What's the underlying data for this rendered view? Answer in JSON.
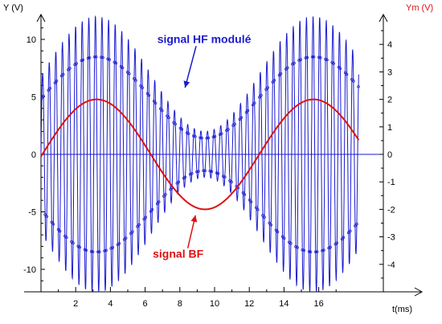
{
  "chart_data": {
    "type": "line",
    "axes": {
      "left": {
        "label": "Y (V)",
        "range": [
          -12,
          12
        ],
        "ticks": [
          10,
          5,
          0,
          -5,
          -10
        ],
        "tick_labels": [
          "10",
          "5",
          "0",
          "-5",
          "-10"
        ]
      },
      "right": {
        "label": "Ym (V)",
        "range": [
          -4.8,
          4.8
        ],
        "ticks": [
          4,
          3,
          2,
          1,
          0,
          -1,
          -2,
          -3,
          -4
        ],
        "tick_labels": [
          "4",
          "3",
          "2",
          "1",
          "0",
          "-1",
          "-2",
          "-3",
          "-4"
        ]
      },
      "x": {
        "label": "t(ms)",
        "range": [
          0,
          18.3
        ],
        "ticks": [
          2,
          4,
          6,
          8,
          10,
          12,
          14,
          16
        ],
        "tick_labels": [
          "2",
          "4",
          "6",
          "8",
          "10",
          "12",
          "14",
          "16"
        ]
      }
    },
    "series": [
      {
        "name": "signal HF modulé",
        "color": "#1a1ad0",
        "axis": "left",
        "model": "sinusoid with amplitude 7 + 5*sin(2*pi*f_bf*t), carrier period in ms",
        "carrier_period_ms": 0.38,
        "offset": 0,
        "amplitude_base": 7,
        "amplitude_mod": 5,
        "bf_period_ms": 12.5,
        "bf_peak_ms": 3.2
      },
      {
        "name": "signal BF",
        "color": "#dd1111",
        "axis": "right",
        "model": "sine wave",
        "amplitude": 2,
        "period_ms": 12.5,
        "peak_ms": 3.2
      }
    ],
    "annotations": [
      {
        "text": "signal HF modulé",
        "color": "#1a1ad0",
        "x_ms": 9.4,
        "y_v": 9.7,
        "arrow_to": {
          "x_ms": 8.3,
          "y_v": 5.8
        }
      },
      {
        "text": "signal BF",
        "color": "#dd1111",
        "x_ms": 7.9,
        "y_v": -9.0,
        "arrow_to": {
          "x_ms": 8.9,
          "y_v": -5.3
        }
      }
    ],
    "grid": false,
    "legend": "none"
  }
}
